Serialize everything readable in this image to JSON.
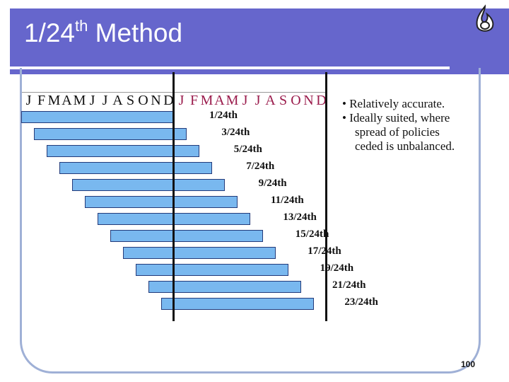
{
  "title": {
    "main": "1/24",
    "sup": "th",
    "rest": " Method"
  },
  "months": [
    "J",
    "F",
    "M",
    "A",
    "M",
    "J",
    "J",
    "A",
    "S",
    "O",
    "N",
    "D",
    "J",
    "F",
    "M",
    "A",
    "M",
    "J",
    "J",
    "A",
    "S",
    "O",
    "N",
    "D"
  ],
  "bars": [
    {
      "label": "1/24th"
    },
    {
      "label": "3/24th"
    },
    {
      "label": "5/24th"
    },
    {
      "label": "7/24th"
    },
    {
      "label": "9/24th"
    },
    {
      "label": "11/24th"
    },
    {
      "label": "13/24th"
    },
    {
      "label": "15/24th"
    },
    {
      "label": "17/24th"
    },
    {
      "label": "19/24th"
    },
    {
      "label": "21/24th"
    },
    {
      "label": "23/24th"
    }
  ],
  "bullets": [
    {
      "lines": [
        "Relatively accurate."
      ]
    },
    {
      "lines": [
        "Ideally suited, where",
        "spread of policies",
        "ceded is unbalanced."
      ]
    }
  ],
  "page_number": "100",
  "colors": {
    "header": "#6666cc",
    "bar_fill": "#79b8ef",
    "bar_border": "#243b7a",
    "year2_months": "#9b1d4d",
    "frame": "#9fb0d6"
  }
}
